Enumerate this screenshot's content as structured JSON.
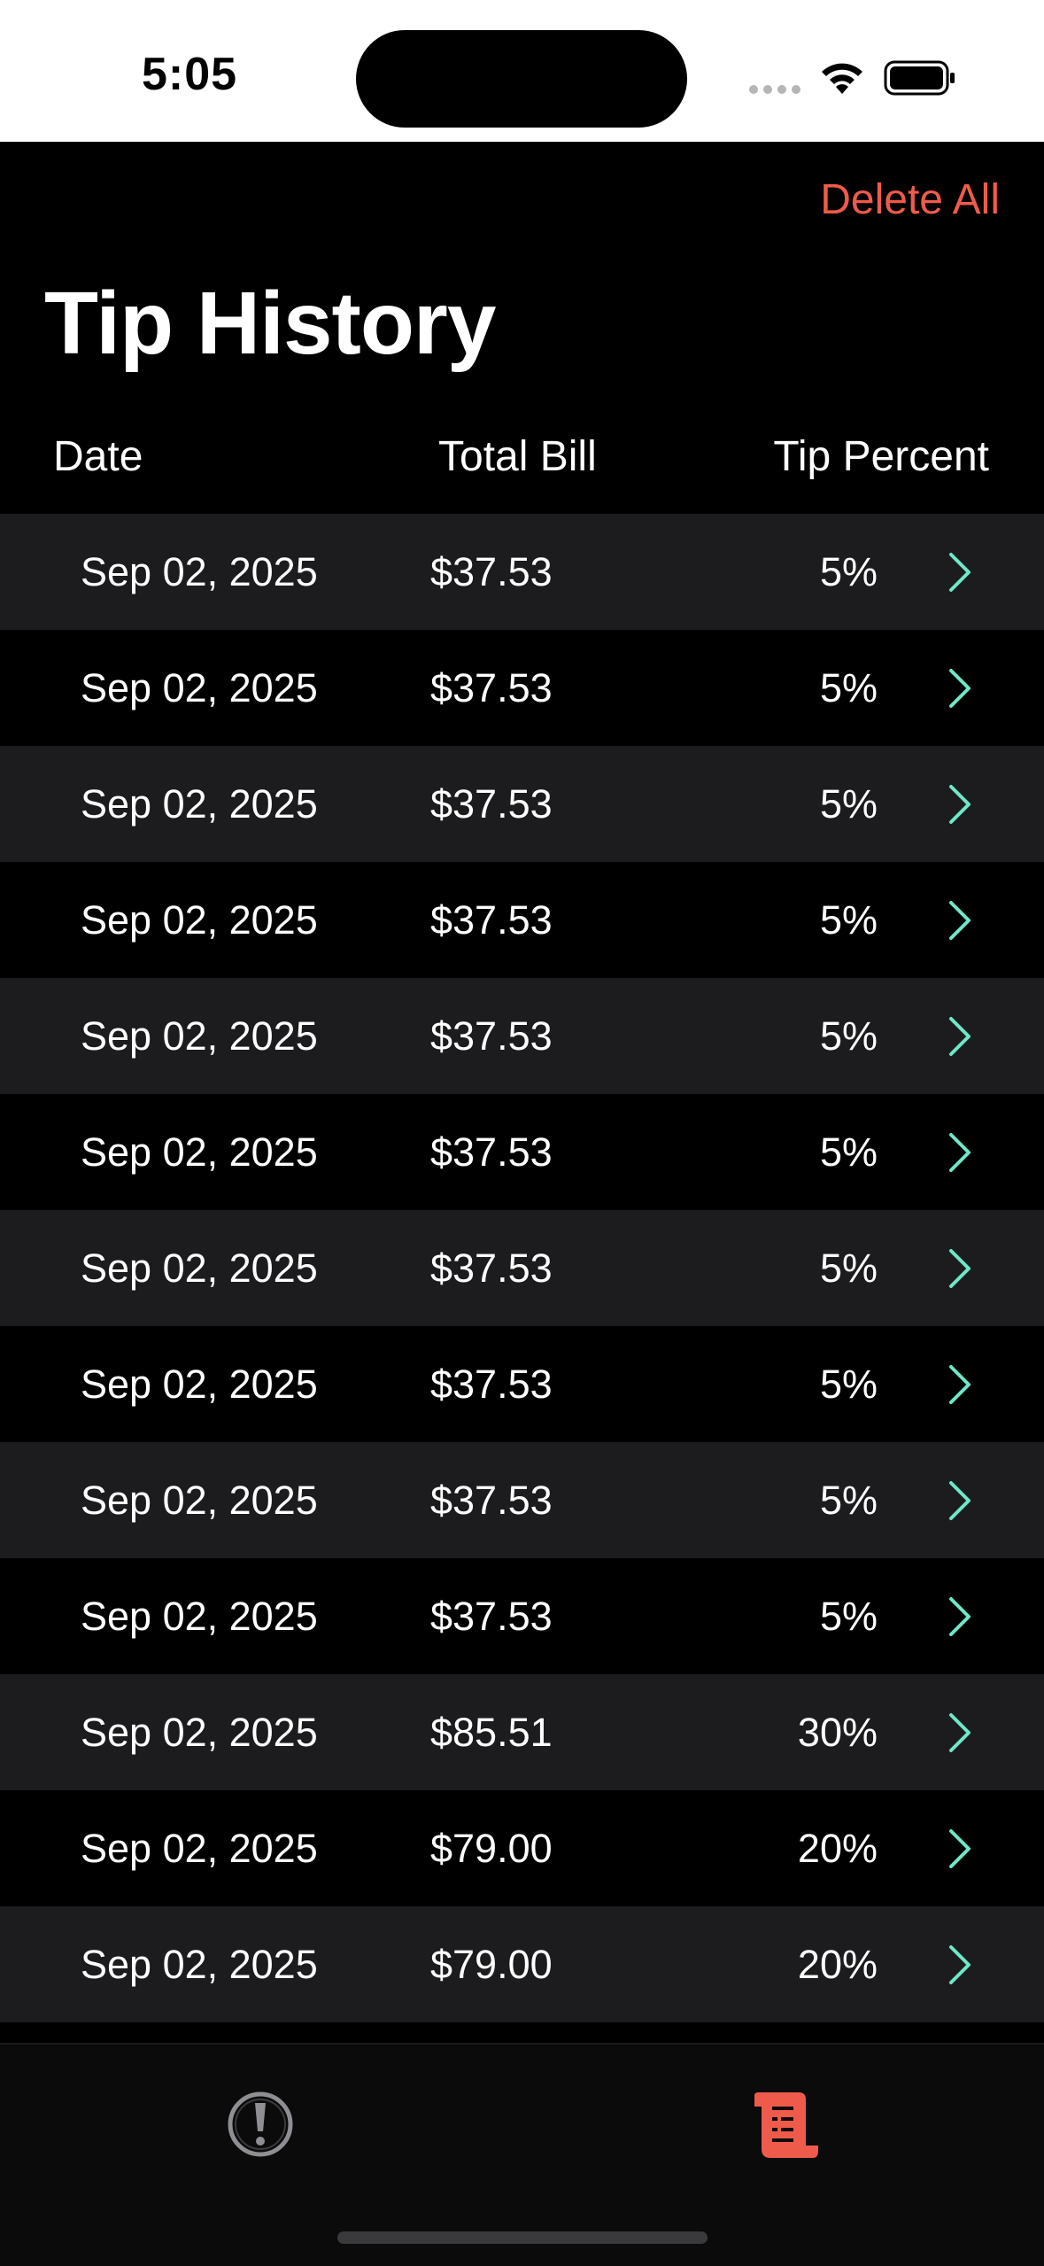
{
  "status_bar": {
    "time": "5:05"
  },
  "header": {
    "delete_all_label": "Delete All",
    "title": "Tip History"
  },
  "columns": {
    "date": "Date",
    "total_bill": "Total Bill",
    "tip_percent": "Tip Percent"
  },
  "rows": [
    {
      "date": "Sep 02, 2025",
      "total": "$37.53",
      "tip": "5%"
    },
    {
      "date": "Sep 02, 2025",
      "total": "$37.53",
      "tip": "5%"
    },
    {
      "date": "Sep 02, 2025",
      "total": "$37.53",
      "tip": "5%"
    },
    {
      "date": "Sep 02, 2025",
      "total": "$37.53",
      "tip": "5%"
    },
    {
      "date": "Sep 02, 2025",
      "total": "$37.53",
      "tip": "5%"
    },
    {
      "date": "Sep 02, 2025",
      "total": "$37.53",
      "tip": "5%"
    },
    {
      "date": "Sep 02, 2025",
      "total": "$37.53",
      "tip": "5%"
    },
    {
      "date": "Sep 02, 2025",
      "total": "$37.53",
      "tip": "5%"
    },
    {
      "date": "Sep 02, 2025",
      "total": "$37.53",
      "tip": "5%"
    },
    {
      "date": "Sep 02, 2025",
      "total": "$37.53",
      "tip": "5%"
    },
    {
      "date": "Sep 02, 2025",
      "total": "$85.51",
      "tip": "30%"
    },
    {
      "date": "Sep 02, 2025",
      "total": "$79.00",
      "tip": "20%"
    },
    {
      "date": "Sep 02, 2025",
      "total": "$79.00",
      "tip": "20%"
    }
  ],
  "tab_bar": {
    "items": [
      {
        "icon": "exclamation-circle-icon",
        "selected": false
      },
      {
        "icon": "receipt-scroll-icon",
        "selected": true
      }
    ]
  },
  "colors": {
    "accent": "#ef5b4b",
    "chevron": "#6ee7c8",
    "row_alt": "#1c1c1e",
    "background": "#000000"
  }
}
